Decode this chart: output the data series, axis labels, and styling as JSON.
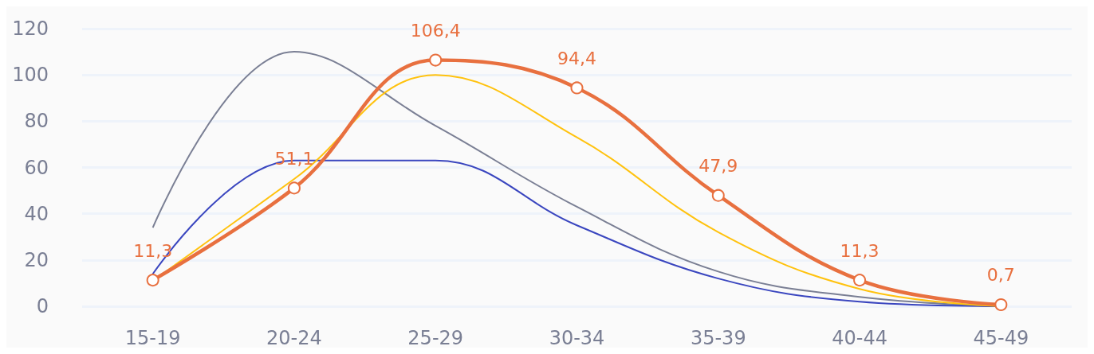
{
  "chart_data": {
    "type": "line",
    "categories": [
      "15-19",
      "20-24",
      "25-29",
      "30-34",
      "35-39",
      "40-44",
      "45-49"
    ],
    "series": [
      {
        "color": "#7a7f94",
        "values": [
          34,
          110,
          78,
          43,
          15,
          4,
          0
        ],
        "marker": "none"
      },
      {
        "color": "#3a46bf",
        "values": [
          14,
          63,
          63,
          35,
          12,
          2,
          0
        ],
        "marker": "none"
      },
      {
        "color": "#ffc20e",
        "values": [
          11,
          55,
          100,
          73,
          32,
          7.5,
          0
        ],
        "marker": "none"
      },
      {
        "color": "#e8703f",
        "values": [
          11.3,
          51.1,
          106.4,
          94.4,
          47.9,
          11.3,
          0.7
        ],
        "marker": "circle",
        "value_labels": [
          "11,3",
          "51,1",
          "106,4",
          "94,4",
          "47,9",
          "11,3",
          "0,7"
        ]
      }
    ],
    "ylim": [
      0,
      120
    ],
    "yticks": [
      0,
      20,
      40,
      60,
      80,
      100,
      120
    ],
    "grid": "y"
  }
}
